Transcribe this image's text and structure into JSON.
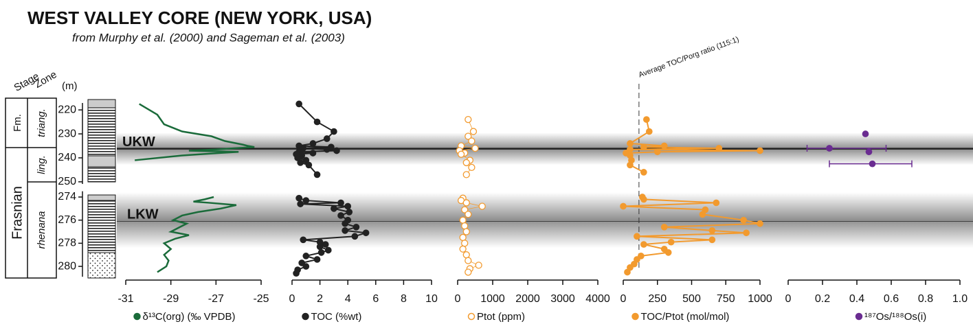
{
  "chart_data": {
    "type": "depth-profile",
    "title": "WEST VALLEY CORE (NEW YORK, USA)",
    "subtitle": "from Murphy et al. (2000) and Sageman et al. (2003)",
    "y_label": "(m)",
    "column_headers": [
      "Stage",
      "Zone"
    ],
    "formation_label": "Fm.",
    "stage_label": "Frasnian",
    "zone_labels": [
      "triang.",
      "ling.",
      "rhenana"
    ],
    "depth_segments": [
      {
        "ylim": [
          217.1,
          250.9
        ],
        "yticks": [
          220,
          230,
          240,
          250
        ]
      },
      {
        "ylim": [
          273.5,
          280.9
        ],
        "yticks": [
          274,
          276,
          278,
          280
        ]
      }
    ],
    "zones": [
      {
        "label": "UKW",
        "from": 229.5,
        "to": 243,
        "line": 236.2
      },
      {
        "label": "LKW",
        "from": 273.6,
        "to": 278.4,
        "line": 276.1
      }
    ],
    "panels": [
      {
        "type": "line",
        "label": "δ¹³C(org) (‰ VPDB)",
        "color": "#1a6b3a",
        "xlim": [
          -31,
          -25
        ],
        "xticks": [
          -31,
          -29,
          -27,
          -25
        ],
        "segments": [
          {
            "x": [
              -30.4,
              -29.6,
              -29.3,
              -28.5,
              -27.2,
              -26.6,
              -25.8,
              -25.6,
              -25.3,
              -26.2,
              -27.0,
              -28.2,
              -26.0,
              -26.9,
              -28.5,
              -30.6
            ],
            "y": [
              217.5,
              222,
              226,
              229,
              231,
              233,
              234.5,
              235,
              235.5,
              236,
              236.5,
              237,
              237.5,
              238,
              239,
              241
            ]
          },
          {
            "x": [
              -27.1,
              -27.5,
              -28.0,
              -27.3,
              -26.1,
              -26.8,
              -27.8,
              -28.5,
              -28.9,
              -28.3,
              -28.6,
              -29.0,
              -28.2,
              -28.8,
              -29.3,
              -29.0,
              -29.3,
              -29.1,
              -29.2,
              -29.6
            ],
            "y": [
              274.0,
              274.2,
              274.4,
              274.5,
              274.7,
              275.0,
              275.3,
              275.6,
              276.0,
              276.3,
              276.6,
              277.0,
              277.3,
              277.6,
              278.0,
              278.5,
              279.0,
              279.5,
              280.0,
              280.5
            ]
          }
        ]
      },
      {
        "type": "line-points",
        "label": "TOC (%wt)",
        "color": "#222222",
        "xlim": [
          0,
          10
        ],
        "xticks": [
          0,
          2,
          4,
          6,
          8,
          10
        ],
        "segments": [
          {
            "x": [
              0.5,
              1.8,
              3.0,
              2.5,
              1.5,
              0.5,
              2.8,
              0.8,
              2.5,
              3.2,
              0.5,
              1.5,
              0.3,
              0.7,
              0.4,
              1.0,
              0.6,
              1.2,
              1.8
            ],
            "y": [
              217.5,
              225,
              229,
              232,
              234,
              235,
              235.5,
              236,
              236.5,
              237,
              237.5,
              238,
              238.5,
              239,
              240,
              241,
              242,
              243,
              247
            ]
          },
          {
            "x": [
              0.5,
              1.0,
              3.5,
              0.6,
              4.0,
              3.0,
              4.1,
              3.5,
              4.0,
              3.8,
              4.6,
              3.8,
              5.3,
              4.5,
              0.8,
              2.0,
              2.4,
              2.0,
              2.6,
              2.1,
              1.0,
              1.8,
              0.7,
              1.0,
              0.4,
              0.3
            ],
            "y": [
              274.1,
              274.3,
              274.5,
              274.6,
              274.8,
              275.0,
              275.3,
              275.6,
              276.0,
              276.3,
              276.6,
              276.9,
              277.1,
              277.4,
              277.7,
              277.9,
              278.1,
              278.3,
              278.6,
              278.8,
              279.1,
              279.4,
              279.7,
              280.0,
              280.3,
              280.6
            ]
          }
        ]
      },
      {
        "type": "open-points",
        "label": "Ptot (ppm)",
        "color": "#f29a2e",
        "xlim": [
          0,
          4000
        ],
        "xticks": [
          0,
          1000,
          2000,
          3000,
          4000
        ],
        "segments": [
          {
            "x": [
              300,
              450,
              300,
              400,
              100,
              500,
              50,
              200,
              100,
              350,
              250,
              400,
              250
            ],
            "y": [
              224,
              229,
              231,
              233,
              235,
              236,
              237,
              238,
              238.5,
              241,
              242,
              244,
              247
            ]
          },
          {
            "x": [
              150,
              100,
              250,
              700,
              200,
              300,
              150,
              200,
              250,
              150,
              200,
              150,
              250,
              300,
              600,
              350,
              300
            ],
            "y": [
              274.1,
              274.3,
              274.5,
              274.8,
              275.1,
              275.5,
              276.0,
              276.5,
              277.0,
              277.5,
              278.0,
              278.5,
              279.0,
              279.5,
              279.9,
              280.2,
              280.5
            ]
          }
        ]
      },
      {
        "type": "line-points",
        "label": "TOC/Ptot (mol/mol)",
        "color": "#f29a2e",
        "xlim": [
          0,
          1000
        ],
        "xticks": [
          0,
          250,
          500,
          750,
          1000
        ],
        "reference": {
          "value": 115,
          "label": "Average TOC/Porg ratio (115:1)"
        },
        "segments": [
          {
            "x": [
              170,
              190,
              50,
              300,
              150,
              700,
              50,
              1000,
              250,
              20,
              50,
              60,
              50,
              150
            ],
            "y": [
              224,
              229,
              234,
              235,
              235.5,
              236,
              236.5,
              237,
              237.5,
              238,
              239,
              241,
              243,
              246
            ]
          },
          {
            "x": [
              140,
              150,
              680,
              0,
              600,
              580,
              880,
              1000,
              300,
              650,
              900,
              100,
              650,
              350,
              150,
              300,
              330,
              130,
              100,
              80,
              50,
              30
            ],
            "y": [
              274.0,
              274.2,
              274.5,
              274.8,
              275.1,
              275.5,
              276.0,
              276.3,
              276.6,
              276.9,
              277.1,
              277.4,
              277.7,
              277.9,
              278.1,
              278.5,
              278.8,
              279.1,
              279.4,
              279.8,
              280.1,
              280.5
            ]
          }
        ]
      },
      {
        "type": "errorbar",
        "label": "¹⁸⁷Os/¹⁸⁸Os(i)",
        "color": "#6a2c91",
        "xlim": [
          0,
          1
        ],
        "xticks": [
          0,
          0.2,
          0.4,
          0.6,
          0.8,
          {
            "value": 1,
            "label": "1.0"
          }
        ],
        "segments": [
          {
            "x": [
              0.45,
              0.24,
              0.47,
              0.49
            ],
            "y": [
              230,
              236,
              237.5,
              242.5
            ],
            "x_min": [
              null,
              0.11,
              null,
              0.24
            ],
            "x_max": [
              null,
              0.57,
              null,
              0.72
            ]
          },
          {
            "x": [],
            "y": [],
            "x_min": [],
            "x_max": []
          }
        ]
      }
    ]
  }
}
